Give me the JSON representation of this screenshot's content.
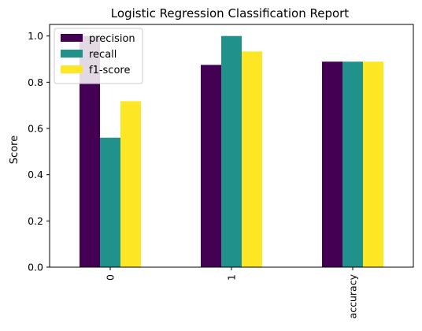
{
  "chart_data": {
    "type": "bar",
    "title": "Logistic Regression Classification Report",
    "xlabel": "",
    "ylabel": "Score",
    "categories": [
      "0",
      "1",
      "accuracy"
    ],
    "series": [
      {
        "name": "precision",
        "color": "#440154",
        "values": [
          1.0,
          0.875,
          0.889
        ]
      },
      {
        "name": "recall",
        "color": "#21918c",
        "values": [
          0.56,
          1.0,
          0.889
        ]
      },
      {
        "name": "f1-score",
        "color": "#fde725",
        "values": [
          0.718,
          0.933,
          0.889
        ]
      }
    ],
    "ylim": [
      0,
      1.05
    ],
    "yticks": [
      "0.0",
      "0.2",
      "0.4",
      "0.6",
      "0.8",
      "1.0"
    ],
    "ytick_values": [
      0.0,
      0.2,
      0.4,
      0.6,
      0.8,
      1.0
    ],
    "grid": false,
    "legend_position": "top-left"
  }
}
